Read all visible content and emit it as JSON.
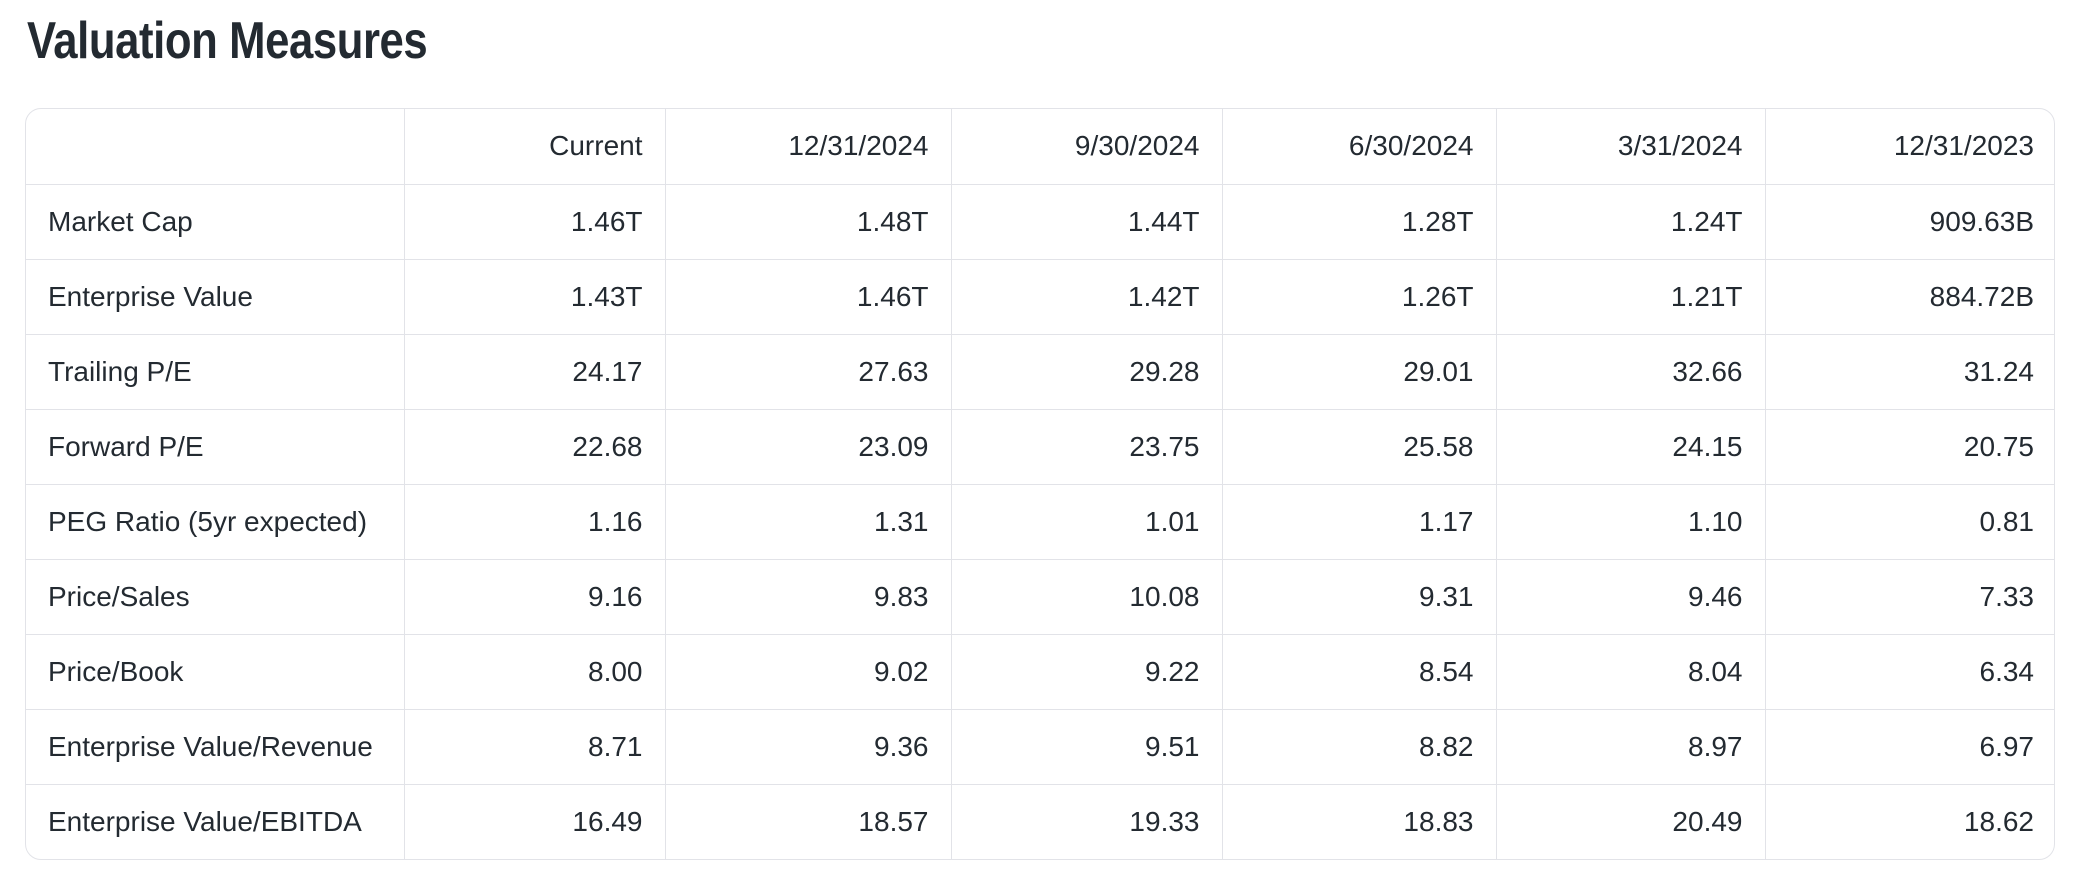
{
  "title": "Valuation Measures",
  "colors": {
    "text": "#232a31",
    "border": "#e2e3e8",
    "background": "#ffffff"
  },
  "chart_data": {
    "type": "table",
    "title": "Valuation Measures",
    "columns": [
      "",
      "Current",
      "12/31/2024",
      "9/30/2024",
      "6/30/2024",
      "3/31/2024",
      "12/31/2023"
    ],
    "rows": [
      {
        "label": "Market Cap",
        "values": [
          "1.46T",
          "1.48T",
          "1.44T",
          "1.28T",
          "1.24T",
          "909.63B"
        ]
      },
      {
        "label": "Enterprise Value",
        "values": [
          "1.43T",
          "1.46T",
          "1.42T",
          "1.26T",
          "1.21T",
          "884.72B"
        ]
      },
      {
        "label": "Trailing P/E",
        "values": [
          "24.17",
          "27.63",
          "29.28",
          "29.01",
          "32.66",
          "31.24"
        ]
      },
      {
        "label": "Forward P/E",
        "values": [
          "22.68",
          "23.09",
          "23.75",
          "25.58",
          "24.15",
          "20.75"
        ]
      },
      {
        "label": "PEG Ratio (5yr expected)",
        "values": [
          "1.16",
          "1.31",
          "1.01",
          "1.17",
          "1.10",
          "0.81"
        ]
      },
      {
        "label": "Price/Sales",
        "values": [
          "9.16",
          "9.83",
          "10.08",
          "9.31",
          "9.46",
          "7.33"
        ]
      },
      {
        "label": "Price/Book",
        "values": [
          "8.00",
          "9.02",
          "9.22",
          "8.54",
          "8.04",
          "6.34"
        ]
      },
      {
        "label": "Enterprise Value/Revenue",
        "values": [
          "8.71",
          "9.36",
          "9.51",
          "8.82",
          "8.97",
          "6.97"
        ]
      },
      {
        "label": "Enterprise Value/EBITDA",
        "values": [
          "16.49",
          "18.57",
          "19.33",
          "18.83",
          "20.49",
          "18.62"
        ]
      }
    ]
  }
}
